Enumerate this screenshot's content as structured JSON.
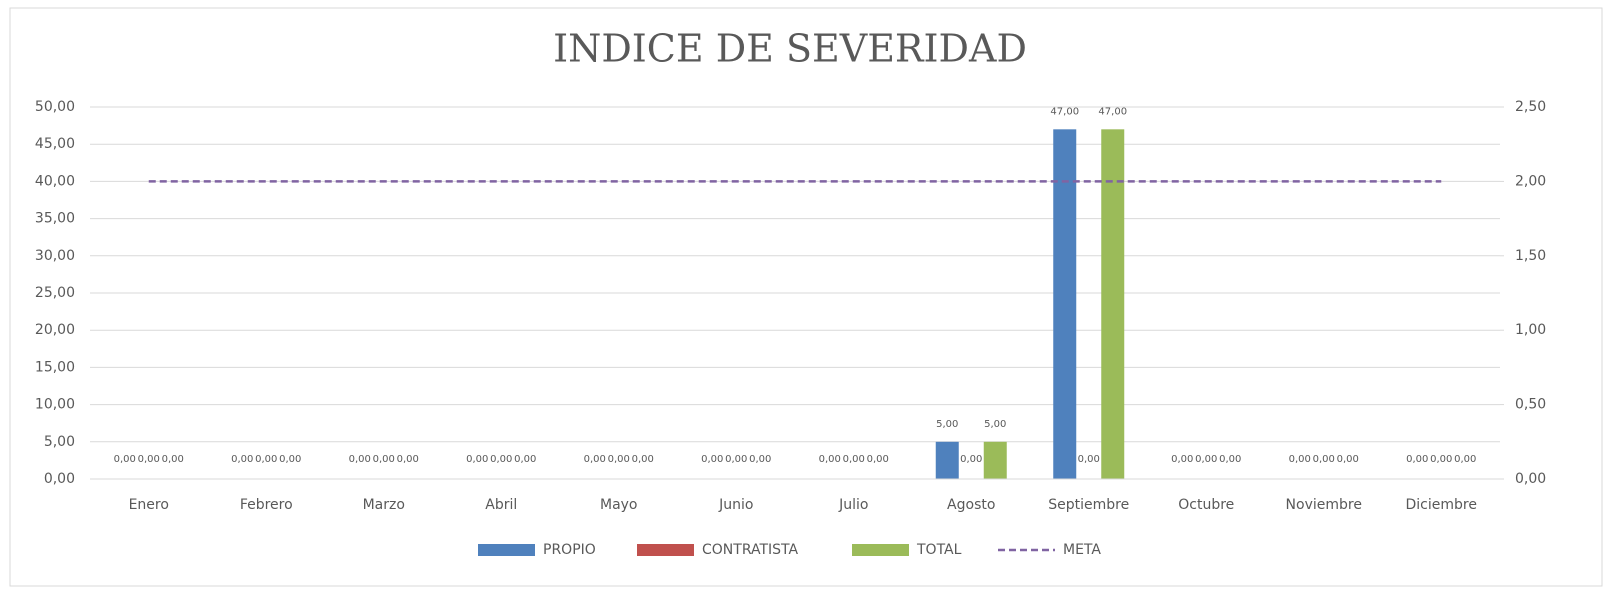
{
  "chart_data": {
    "type": "bar",
    "title": "INDICE DE SEVERIDAD",
    "categories": [
      "Enero",
      "Febrero",
      "Marzo",
      "Abril",
      "Mayo",
      "Junio",
      "Julio",
      "Agosto",
      "Septiembre",
      "Octubre",
      "Noviembre",
      "Diciembre"
    ],
    "series": [
      {
        "name": "PROPIO",
        "color": "#4f81bd",
        "values": [
          0,
          0,
          0,
          0,
          0,
          0,
          0,
          5,
          47,
          0,
          0,
          0
        ],
        "value_labels": [
          "0,00",
          "0,00",
          "0,00",
          "0,00",
          "0,00",
          "0,00",
          "0,00",
          "5,00",
          "47,00",
          "0,00",
          "0,00",
          "0,00"
        ]
      },
      {
        "name": "CONTRATISTA",
        "color": "#c0504d",
        "values": [
          0,
          0,
          0,
          0,
          0,
          0,
          0,
          0,
          0,
          0,
          0,
          0
        ],
        "value_labels": [
          "0,00",
          "0,00",
          "0,00",
          "0,00",
          "0,00",
          "0,00",
          "0,00",
          "0,00",
          "0,00",
          "0,00",
          "0,00",
          "0,00"
        ]
      },
      {
        "name": "TOTAL",
        "color": "#9bbb59",
        "values": [
          0,
          0,
          0,
          0,
          0,
          0,
          0,
          5,
          47,
          0,
          0,
          0
        ],
        "value_labels": [
          "0,00",
          "0,00",
          "0,00",
          "0,00",
          "0,00",
          "0,00",
          "0,00",
          "5,00",
          "47,00",
          "0,00",
          "0,00",
          "0,00"
        ]
      },
      {
        "name": "META",
        "color": "#8064a2",
        "type": "line",
        "dashed": true,
        "axis": "y2",
        "values": [
          2,
          2,
          2,
          2,
          2,
          2,
          2,
          2,
          2,
          2,
          2,
          2
        ]
      }
    ],
    "ylim": [
      0,
      50
    ],
    "yticks": [
      {
        "value": 0,
        "label": "0,00"
      },
      {
        "value": 5,
        "label": "5,00"
      },
      {
        "value": 10,
        "label": "10,00"
      },
      {
        "value": 15,
        "label": "15,00"
      },
      {
        "value": 20,
        "label": "20,00"
      },
      {
        "value": 25,
        "label": "25,00"
      },
      {
        "value": 30,
        "label": "30,00"
      },
      {
        "value": 35,
        "label": "35,00"
      },
      {
        "value": 40,
        "label": "40,00"
      },
      {
        "value": 45,
        "label": "45,00"
      },
      {
        "value": 50,
        "label": "50,00"
      }
    ],
    "y2lim": [
      0,
      2.5
    ],
    "y2ticks": [
      {
        "value": 0,
        "label": "0,00"
      },
      {
        "value": 0.5,
        "label": "0,50"
      },
      {
        "value": 1,
        "label": "1,00"
      },
      {
        "value": 1.5,
        "label": "1,50"
      },
      {
        "value": 2,
        "label": "2,00"
      },
      {
        "value": 2.5,
        "label": "2,50"
      }
    ],
    "grid": true,
    "legend": "bottom"
  }
}
